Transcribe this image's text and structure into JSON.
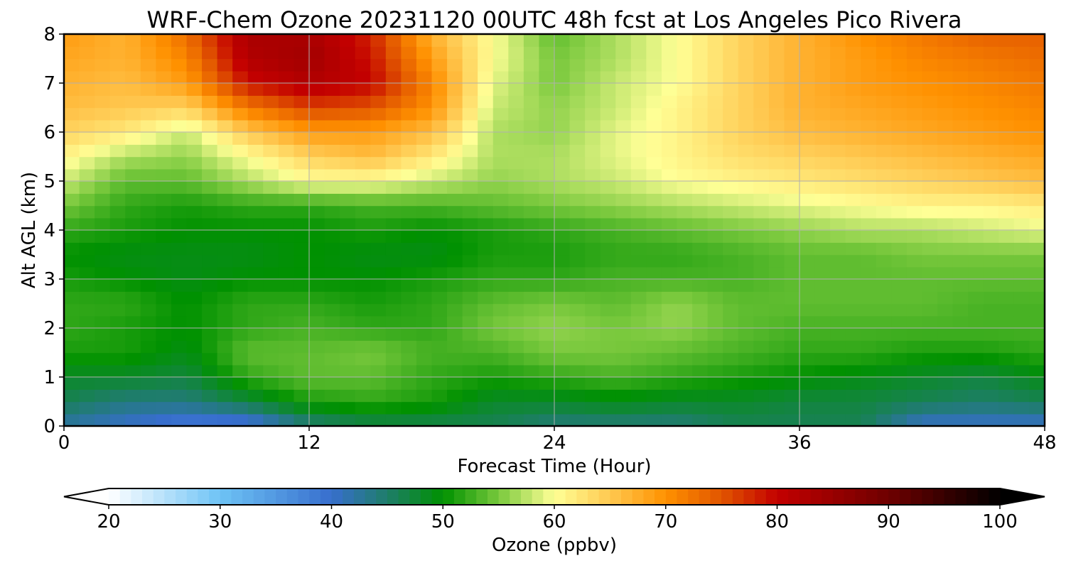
{
  "chart_data": {
    "type": "heatmap",
    "title": "WRF-Chem Ozone  20231120 00UTC 48h fcst at Los Angeles Pico Rivera",
    "xlabel": "Forecast Time (Hour)",
    "ylabel": "Alt AGL (km)",
    "xlim": [
      0,
      48
    ],
    "ylim": [
      0,
      8
    ],
    "x_ticks": [
      "0",
      "12",
      "24",
      "36",
      "48"
    ],
    "y_ticks": [
      "0",
      "1",
      "2",
      "3",
      "4",
      "5",
      "6",
      "7",
      "8"
    ],
    "grid": true,
    "colorbar": {
      "label": "Ozone  (ppbv)",
      "range": [
        20,
        100
      ],
      "extend": "both",
      "ticks": [
        "20",
        "30",
        "40",
        "50",
        "60",
        "70",
        "80",
        "90",
        "100"
      ]
    },
    "x": [
      0,
      3,
      6,
      9,
      12,
      15,
      18,
      21,
      24,
      27,
      30,
      33,
      36,
      39,
      42,
      45,
      48
    ],
    "y": [
      0,
      0.5,
      1,
      1.5,
      2,
      2.5,
      3,
      3.5,
      4,
      4.5,
      5,
      5.5,
      6,
      6.5,
      7,
      7.5,
      8
    ],
    "values": [
      [
        42,
        40,
        38,
        38,
        44,
        46,
        46,
        46,
        44,
        44,
        44,
        46,
        46,
        46,
        40,
        40,
        40
      ],
      [
        46,
        44,
        44,
        47,
        51,
        52,
        51,
        48,
        48,
        49,
        48,
        48,
        47,
        47,
        46,
        45,
        46
      ],
      [
        48,
        48,
        47,
        52,
        54,
        54,
        52,
        51,
        52,
        53,
        52,
        51,
        50,
        49,
        48,
        47,
        49
      ],
      [
        51,
        51,
        49,
        54,
        54,
        55,
        53,
        53,
        55,
        55,
        54,
        53,
        52,
        52,
        51,
        51,
        52
      ],
      [
        52,
        51,
        50,
        52,
        53,
        52,
        52,
        55,
        56,
        55,
        56,
        54,
        53,
        53,
        53,
        53,
        53
      ],
      [
        52,
        52,
        50,
        52,
        52,
        51,
        52,
        54,
        55,
        54,
        56,
        54,
        54,
        54,
        54,
        53,
        53
      ],
      [
        51,
        50,
        49,
        50,
        50,
        50,
        51,
        52,
        52,
        53,
        53,
        53,
        54,
        54,
        54,
        54,
        54
      ],
      [
        50,
        49,
        49,
        49,
        50,
        49,
        49,
        51,
        51,
        52,
        52,
        53,
        54,
        54,
        55,
        55,
        55
      ],
      [
        52,
        51,
        50,
        50,
        50,
        51,
        50,
        51,
        52,
        53,
        54,
        55,
        56,
        57,
        57,
        58,
        59
      ],
      [
        55,
        52,
        51,
        52,
        52,
        53,
        53,
        54,
        55,
        56,
        57,
        58,
        59,
        60,
        61,
        61,
        62
      ],
      [
        58,
        54,
        54,
        57,
        60,
        60,
        58,
        56,
        57,
        58,
        60,
        61,
        62,
        63,
        64,
        65,
        66
      ],
      [
        61,
        57,
        56,
        60,
        64,
        66,
        62,
        57,
        57,
        59,
        61,
        63,
        64,
        65,
        66,
        67,
        68
      ],
      [
        64,
        62,
        58,
        65,
        69,
        69,
        66,
        57,
        56,
        59,
        61,
        64,
        66,
        67,
        68,
        69,
        70
      ],
      [
        66,
        65,
        64,
        72,
        76,
        75,
        70,
        58,
        56,
        58,
        61,
        64,
        67,
        68,
        69,
        70,
        71
      ],
      [
        67,
        66,
        69,
        79,
        82,
        80,
        71,
        59,
        55,
        58,
        60,
        64,
        67,
        69,
        70,
        71,
        72
      ],
      [
        68,
        67,
        71,
        82,
        84,
        79,
        69,
        60,
        55,
        57,
        60,
        64,
        67,
        69,
        71,
        72,
        73
      ],
      [
        69,
        67,
        73,
        83,
        83,
        78,
        67,
        60,
        54,
        57,
        60,
        64,
        67,
        70,
        72,
        74,
        74
      ]
    ]
  }
}
